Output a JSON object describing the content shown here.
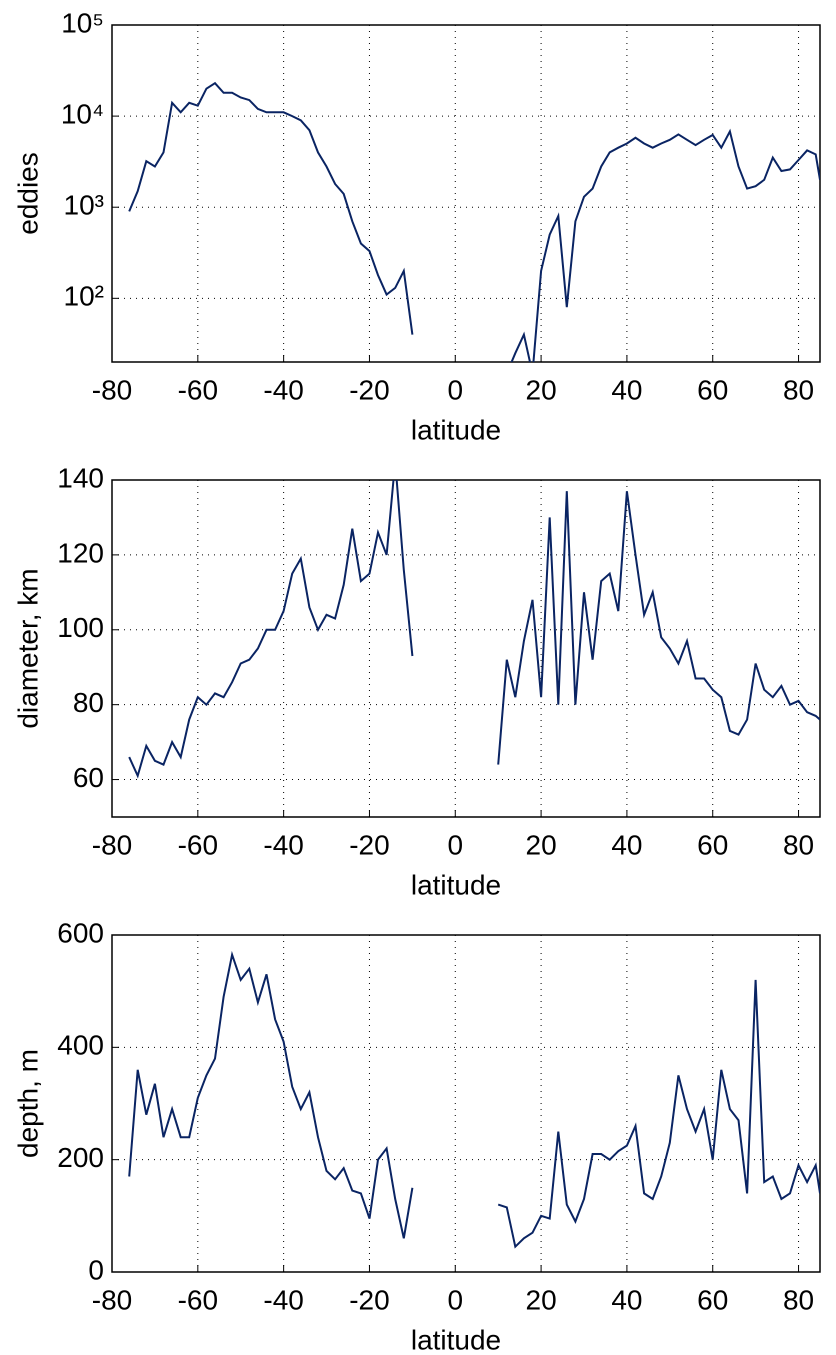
{
  "chart_data": [
    {
      "type": "line",
      "xlabel": "latitude",
      "ylabel": "eddies",
      "log_y": true,
      "grid": true,
      "color": "#0a2463",
      "xlim": [
        -80,
        85
      ],
      "xticks": [
        -80,
        -60,
        -40,
        -20,
        0,
        20,
        40,
        60,
        80
      ],
      "ylim": [
        20,
        100000
      ],
      "yticks": [
        {
          "value": 100,
          "label": "10²"
        },
        {
          "value": 1000,
          "label": "10³"
        },
        {
          "value": 10000,
          "label": "10⁴"
        },
        {
          "value": 100000,
          "label": "10⁵"
        }
      ],
      "x": [
        -76,
        -74,
        -72,
        -70,
        -68,
        -66,
        -64,
        -62,
        -60,
        -58,
        -56,
        -54,
        -52,
        -50,
        -48,
        -46,
        -44,
        -42,
        -40,
        -38,
        -36,
        -34,
        -32,
        -30,
        -28,
        -26,
        -24,
        -22,
        -20,
        -18,
        -16,
        -14,
        -12,
        -10,
        0,
        10,
        12,
        14,
        16,
        18,
        20,
        22,
        24,
        26,
        28,
        30,
        32,
        34,
        36,
        38,
        40,
        42,
        44,
        46,
        48,
        50,
        52,
        54,
        56,
        58,
        60,
        62,
        64,
        66,
        68,
        70,
        72,
        74,
        76,
        78,
        80,
        82,
        84,
        85
      ],
      "values": [
        900,
        1500,
        3200,
        2800,
        4000,
        14000,
        11000,
        14000,
        13000,
        20000,
        23000,
        18000,
        18000,
        16000,
        15000,
        12000,
        11000,
        11000,
        11000,
        10000,
        9000,
        7000,
        4000,
        2800,
        1800,
        1400,
        700,
        400,
        330,
        180,
        110,
        130,
        200,
        40,
        null,
        15,
        15,
        25,
        40,
        15,
        200,
        500,
        800,
        80,
        700,
        1300,
        1600,
        2800,
        4000,
        4500,
        5000,
        5800,
        5000,
        4500,
        5000,
        5500,
        6300,
        5500,
        4800,
        5500,
        6200,
        4500,
        6800,
        2800,
        1600,
        1700,
        2000,
        3500,
        2500,
        2600,
        3300,
        4200,
        3800,
        2000
      ]
    },
    {
      "type": "line",
      "xlabel": "latitude",
      "ylabel": "diameter, km",
      "grid": true,
      "color": "#0a2463",
      "xlim": [
        -80,
        85
      ],
      "xticks": [
        -80,
        -60,
        -40,
        -20,
        0,
        20,
        40,
        60,
        80
      ],
      "ylim": [
        50,
        140
      ],
      "yticks": [
        60,
        80,
        100,
        120,
        140
      ],
      "x": [
        -76,
        -74,
        -72,
        -70,
        -68,
        -66,
        -64,
        -62,
        -60,
        -58,
        -56,
        -54,
        -52,
        -50,
        -48,
        -46,
        -44,
        -42,
        -40,
        -38,
        -36,
        -34,
        -32,
        -30,
        -28,
        -26,
        -24,
        -22,
        -20,
        -18,
        -16,
        -14,
        -12,
        -10,
        0,
        10,
        12,
        14,
        16,
        18,
        20,
        22,
        24,
        26,
        28,
        30,
        32,
        34,
        36,
        38,
        40,
        42,
        44,
        46,
        48,
        50,
        52,
        54,
        56,
        58,
        60,
        62,
        64,
        66,
        68,
        70,
        72,
        74,
        76,
        78,
        80,
        82,
        84,
        85
      ],
      "values": [
        66,
        61,
        69,
        65,
        64,
        70,
        66,
        76,
        82,
        80,
        83,
        82,
        86,
        91,
        92,
        95,
        100,
        100,
        105,
        115,
        119,
        106,
        100,
        104,
        103,
        112,
        127,
        113,
        115,
        126,
        120,
        145,
        116,
        93,
        null,
        64,
        92,
        82,
        97,
        108,
        82,
        130,
        80,
        137,
        80,
        110,
        92,
        113,
        115,
        105,
        137,
        120,
        104,
        110,
        98,
        95,
        91,
        97,
        87,
        87,
        84,
        82,
        73,
        72,
        76,
        91,
        84,
        82,
        85,
        80,
        81,
        78,
        77,
        76
      ]
    },
    {
      "type": "line",
      "xlabel": "latitude",
      "ylabel": "depth, m",
      "grid": true,
      "color": "#0a2463",
      "xlim": [
        -80,
        85
      ],
      "xticks": [
        -80,
        -60,
        -40,
        -20,
        0,
        20,
        40,
        60,
        80
      ],
      "ylim": [
        0,
        600
      ],
      "yticks": [
        0,
        200,
        400,
        600
      ],
      "x": [
        -76,
        -74,
        -72,
        -70,
        -68,
        -66,
        -64,
        -62,
        -60,
        -58,
        -56,
        -54,
        -52,
        -50,
        -48,
        -46,
        -44,
        -42,
        -40,
        -38,
        -36,
        -34,
        -32,
        -30,
        -28,
        -26,
        -24,
        -22,
        -20,
        -18,
        -16,
        -14,
        -12,
        -10,
        0,
        10,
        12,
        14,
        16,
        18,
        20,
        22,
        24,
        26,
        28,
        30,
        32,
        34,
        36,
        38,
        40,
        42,
        44,
        46,
        48,
        50,
        52,
        54,
        56,
        58,
        60,
        62,
        64,
        66,
        68,
        70,
        72,
        74,
        76,
        78,
        80,
        82,
        84,
        85
      ],
      "values": [
        170,
        360,
        280,
        335,
        240,
        290,
        240,
        240,
        310,
        350,
        380,
        490,
        565,
        520,
        540,
        480,
        530,
        450,
        410,
        330,
        290,
        320,
        240,
        180,
        165,
        185,
        145,
        140,
        95,
        200,
        220,
        130,
        60,
        150,
        null,
        120,
        115,
        45,
        60,
        70,
        100,
        95,
        250,
        120,
        90,
        130,
        210,
        210,
        200,
        215,
        225,
        260,
        140,
        130,
        170,
        230,
        350,
        290,
        250,
        290,
        200,
        360,
        290,
        270,
        140,
        520,
        160,
        170,
        130,
        140,
        190,
        160,
        190,
        140
      ]
    }
  ]
}
